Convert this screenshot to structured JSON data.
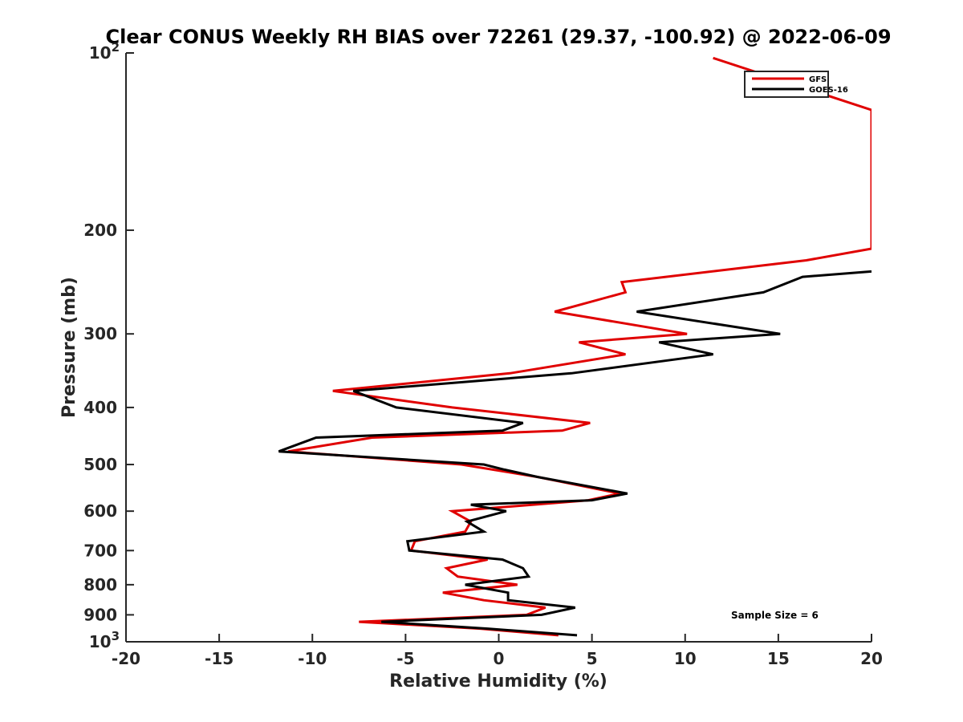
{
  "chart_data": {
    "type": "line",
    "title": "Clear CONUS Weekly RH BIAS over 72261 (29.37, -100.92) @ 2022-06-09",
    "xlabel": "Relative Humidity (%)",
    "ylabel": "Pressure (mb)",
    "xlim": [
      -20,
      20
    ],
    "ylim": [
      100,
      1000
    ],
    "yscale": "log",
    "yaxis_reversed": true,
    "x_ticks": [
      "-20",
      "-15",
      "-10",
      "-5",
      "0",
      "5",
      "10",
      "15",
      "20"
    ],
    "y_ticks": [
      {
        "value": 100,
        "label": "10",
        "sup": "2"
      },
      {
        "value": 200,
        "label": "200",
        "sup": ""
      },
      {
        "value": 300,
        "label": "300",
        "sup": ""
      },
      {
        "value": 400,
        "label": "400",
        "sup": ""
      },
      {
        "value": 500,
        "label": "500",
        "sup": ""
      },
      {
        "value": 600,
        "label": "600",
        "sup": ""
      },
      {
        "value": 700,
        "label": "700",
        "sup": ""
      },
      {
        "value": 800,
        "label": "800",
        "sup": ""
      },
      {
        "value": 900,
        "label": "900",
        "sup": ""
      },
      {
        "value": 1000,
        "label": "10",
        "sup": "3"
      }
    ],
    "grid": false,
    "legend_position": "top-right",
    "series": [
      {
        "name": "GFS",
        "color": "#e00000",
        "points": [
          [
            3.2,
            975
          ],
          [
            -1.0,
            950
          ],
          [
            -7.5,
            925
          ],
          [
            1.5,
            900
          ],
          [
            2.5,
            875
          ],
          [
            -0.8,
            850
          ],
          [
            -3.0,
            825
          ],
          [
            1.0,
            800
          ],
          [
            -2.2,
            775
          ],
          [
            -2.8,
            750
          ],
          [
            -0.6,
            725
          ],
          [
            -4.7,
            700
          ],
          [
            -4.5,
            675
          ],
          [
            -1.8,
            650
          ],
          [
            -1.5,
            625
          ],
          [
            -2.5,
            600
          ],
          [
            4.8,
            575
          ],
          [
            6.5,
            560
          ],
          [
            2.1,
            525
          ],
          [
            -2.0,
            500
          ],
          [
            -11.3,
            475
          ],
          [
            -6.8,
            450
          ],
          [
            3.4,
            438
          ],
          [
            4.9,
            425
          ],
          [
            -2.5,
            400
          ],
          [
            -8.9,
            375
          ],
          [
            0.6,
            350
          ],
          [
            6.8,
            325
          ],
          [
            4.3,
            310
          ],
          [
            10.1,
            300
          ],
          [
            3.0,
            275
          ],
          [
            6.8,
            255
          ],
          [
            6.6,
            245
          ],
          [
            16.5,
            225
          ],
          [
            20.0,
            215
          ],
          [
            20.0,
            125
          ],
          [
            11.5,
            102
          ]
        ]
      },
      {
        "name": "GOES-16",
        "color": "#000000",
        "points": [
          [
            4.2,
            975
          ],
          [
            -0.6,
            950
          ],
          [
            -6.3,
            925
          ],
          [
            2.3,
            900
          ],
          [
            4.1,
            875
          ],
          [
            0.5,
            850
          ],
          [
            0.5,
            825
          ],
          [
            -1.8,
            800
          ],
          [
            1.6,
            775
          ],
          [
            1.3,
            750
          ],
          [
            0.2,
            725
          ],
          [
            -4.8,
            700
          ],
          [
            -4.9,
            675
          ],
          [
            -0.8,
            650
          ],
          [
            -1.7,
            625
          ],
          [
            0.4,
            600
          ],
          [
            -1.5,
            585
          ],
          [
            5.0,
            575
          ],
          [
            6.9,
            560
          ],
          [
            2.1,
            525
          ],
          [
            0.3,
            510
          ],
          [
            -0.8,
            500
          ],
          [
            -11.8,
            475
          ],
          [
            -9.8,
            450
          ],
          [
            0.2,
            438
          ],
          [
            1.3,
            425
          ],
          [
            -5.5,
            400
          ],
          [
            -7.8,
            375
          ],
          [
            3.9,
            350
          ],
          [
            11.5,
            325
          ],
          [
            8.6,
            310
          ],
          [
            15.1,
            300
          ],
          [
            7.4,
            275
          ],
          [
            14.2,
            255
          ],
          [
            16.3,
            240
          ],
          [
            20.0,
            235
          ]
        ]
      }
    ],
    "annotation": "Sample Size = 6"
  }
}
